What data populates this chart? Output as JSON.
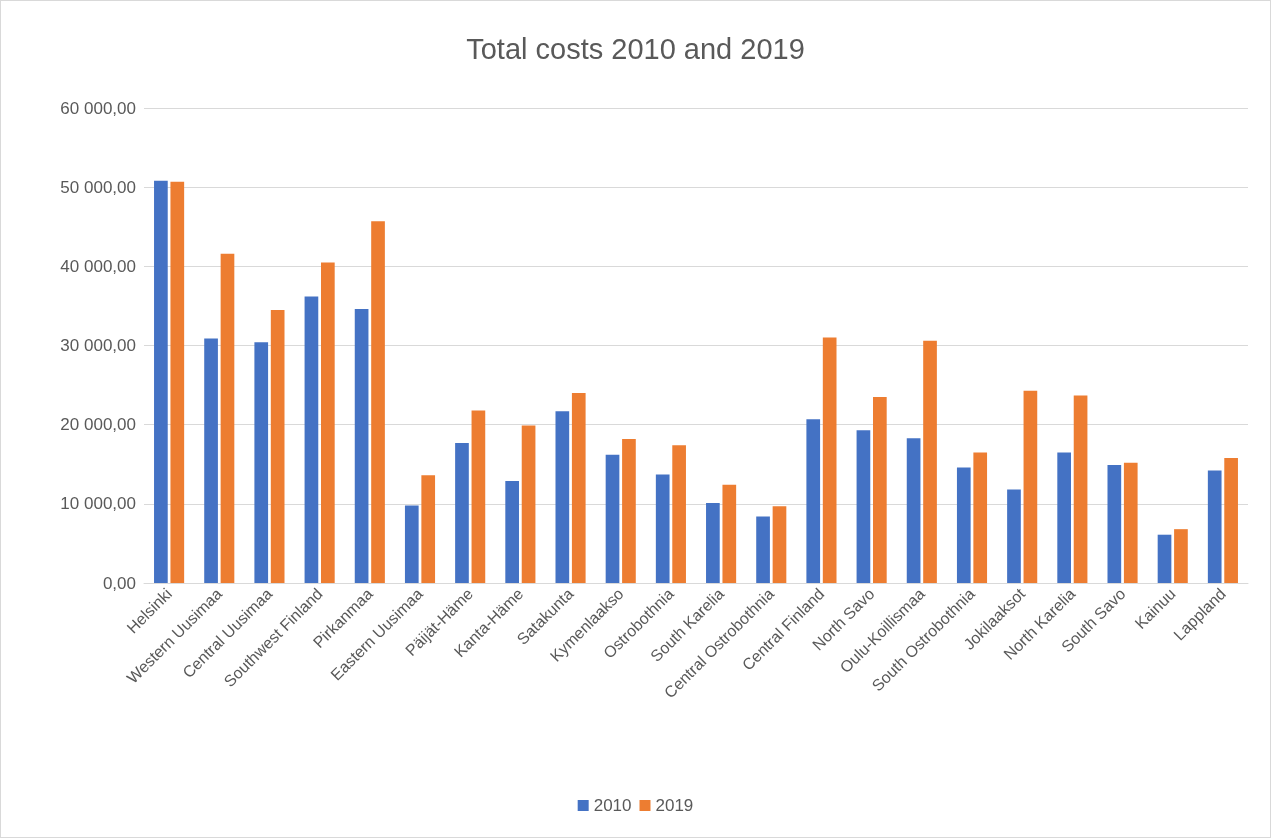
{
  "chart_data": {
    "type": "bar",
    "title": "Total costs 2010 and 2019",
    "categories": [
      "Helsinki",
      "Western Uusimaa",
      "Central Uusimaa",
      "Southwest Finland",
      "Pirkanmaa",
      "Eastern Uusimaa",
      "Päijät-Häme",
      "Kanta-Häme",
      "Satakunta",
      "Kymenlaakso",
      "Ostrobothnia",
      "South Karelia",
      "Central Ostrobothnia",
      "Central Finland",
      "North Savo",
      "Oulu-Koillismaa",
      "South Ostrobothnia",
      "Jokilaaksot",
      "North Karelia",
      "South Savo",
      "Kainuu",
      "Lappland"
    ],
    "series": [
      {
        "name": "2010",
        "color": "#4472c4",
        "values": [
          50800,
          30900,
          30400,
          36200,
          34600,
          9800,
          17700,
          12900,
          21700,
          16200,
          13700,
          10100,
          8400,
          20700,
          19300,
          18300,
          14600,
          11800,
          16500,
          14900,
          6100,
          14200
        ]
      },
      {
        "name": "2019",
        "color": "#ed7d31",
        "values": [
          50700,
          41600,
          34500,
          40500,
          45700,
          13600,
          21800,
          19900,
          24000,
          18200,
          17400,
          12400,
          9700,
          31000,
          23500,
          30600,
          16500,
          24300,
          23700,
          15200,
          6800,
          15800
        ]
      }
    ],
    "ylim": [
      0,
      60000
    ],
    "yticks": [
      {
        "value": 0,
        "label": "0,00"
      },
      {
        "value": 10000,
        "label": "10 000,00"
      },
      {
        "value": 20000,
        "label": "20 000,00"
      },
      {
        "value": 30000,
        "label": "30 000,00"
      },
      {
        "value": 40000,
        "label": "40 000,00"
      },
      {
        "value": 50000,
        "label": "50 000,00"
      },
      {
        "value": 60000,
        "label": "60 000,00"
      }
    ],
    "grid": "y",
    "legend": "bottom"
  }
}
